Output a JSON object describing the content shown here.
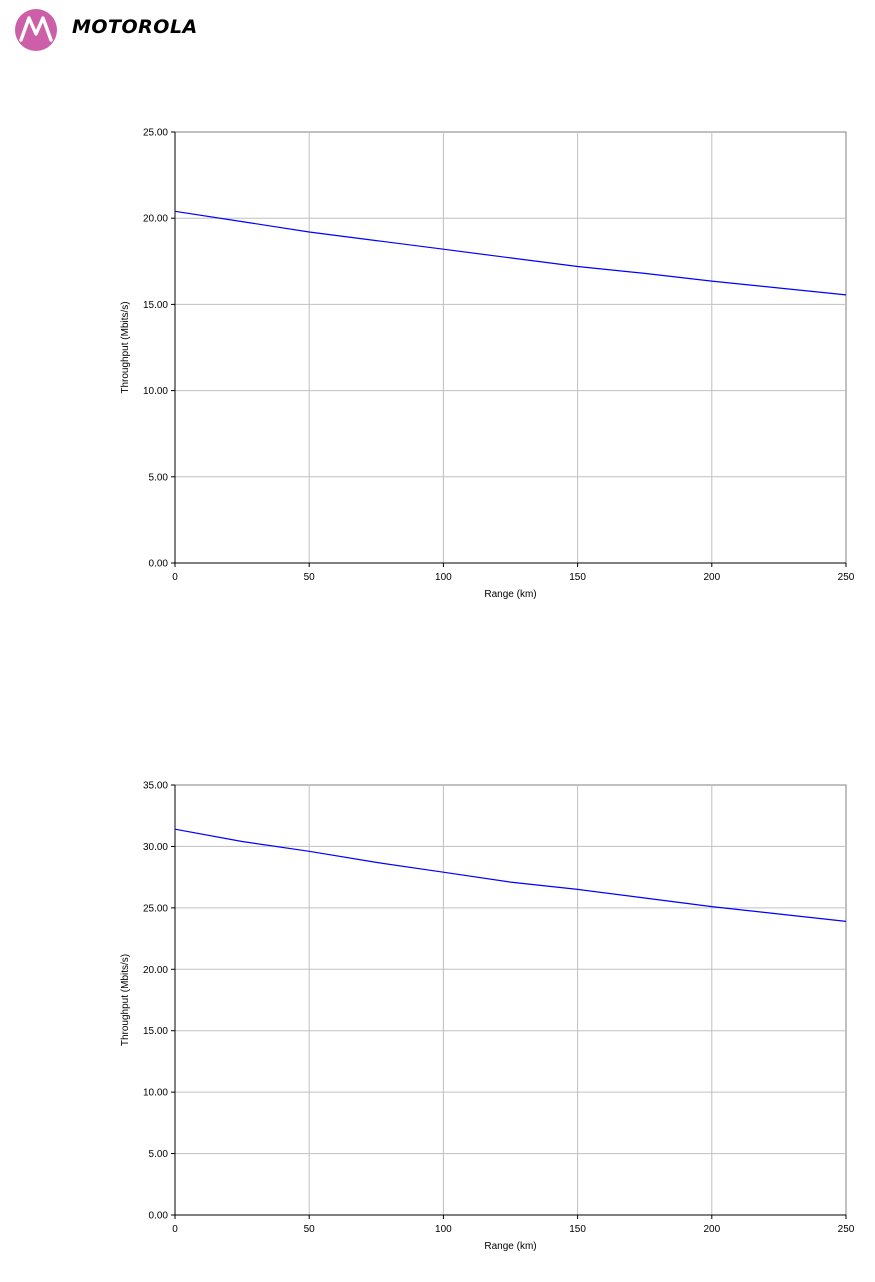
{
  "header": {
    "brand_name": "MOTOROLA",
    "logo_icon": "motorola-batwing-icon",
    "logo_color": "#cc5fa8"
  },
  "chart_data": [
    {
      "type": "line",
      "title": "",
      "xlabel": "Range (km)",
      "ylabel": "Throughput (Mbits/s)",
      "xlim": [
        0,
        250
      ],
      "ylim": [
        0,
        25
      ],
      "x_ticks": [
        0,
        50,
        100,
        150,
        200,
        250
      ],
      "x_tick_labels": [
        "0",
        "50",
        "100",
        "150",
        "200",
        "250"
      ],
      "y_ticks": [
        0,
        5,
        10,
        15,
        20,
        25
      ],
      "y_tick_labels": [
        "0.00",
        "5.00",
        "10.00",
        "15.00",
        "20.00",
        "25.00"
      ],
      "grid": true,
      "legend": "none",
      "line_color": "#0000ff",
      "x": [
        0,
        25,
        50,
        75,
        100,
        125,
        150,
        175,
        200,
        225,
        250
      ],
      "y": [
        20.4,
        19.8,
        19.2,
        18.7,
        18.2,
        17.7,
        17.2,
        16.8,
        16.35,
        15.95,
        15.55
      ]
    },
    {
      "type": "line",
      "title": "",
      "xlabel": "Range (km)",
      "ylabel": "Throughput (Mbits/s)",
      "xlim": [
        0,
        250
      ],
      "ylim": [
        0,
        35
      ],
      "x_ticks": [
        0,
        50,
        100,
        150,
        200,
        250
      ],
      "x_tick_labels": [
        "0",
        "50",
        "100",
        "150",
        "200",
        "250"
      ],
      "y_ticks": [
        0,
        5,
        10,
        15,
        20,
        25,
        30,
        35
      ],
      "y_tick_labels": [
        "0.00",
        "5.00",
        "10.00",
        "15.00",
        "20.00",
        "25.00",
        "30.00",
        "35.00"
      ],
      "grid": true,
      "legend": "none",
      "line_color": "#0000ff",
      "x": [
        0,
        25,
        50,
        75,
        100,
        125,
        150,
        175,
        200,
        225,
        250
      ],
      "y": [
        31.4,
        30.4,
        29.6,
        28.7,
        27.9,
        27.1,
        26.5,
        25.8,
        25.1,
        24.5,
        23.9
      ]
    }
  ]
}
